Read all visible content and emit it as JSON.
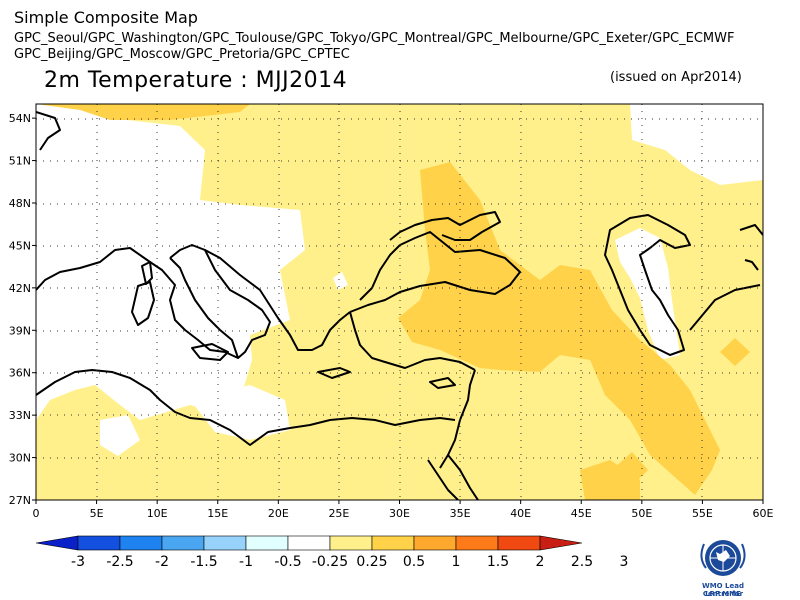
{
  "header": {
    "app_title": "Simple Composite Map",
    "centres_line1": "GPC_Seoul/GPC_Washington/GPC_Toulouse/GPC_Tokyo/GPC_Montreal/GPC_Melbourne/GPC_Exeter/GPC_ECMWF",
    "centres_line2": "GPC_Beijing/GPC_Moscow/GPC_Pretoria/GPC_CPTEC",
    "map_title": "2m Temperature : MJJ2014",
    "issued": "(issued on Apr2014)"
  },
  "map": {
    "lat_labels": [
      "54N",
      "51N",
      "48N",
      "45N",
      "42N",
      "39N",
      "36N",
      "33N",
      "30N",
      "27N"
    ],
    "lat_values": [
      54,
      51,
      48,
      45,
      42,
      39,
      36,
      33,
      30,
      27
    ],
    "lon_labels": [
      "0",
      "5E",
      "10E",
      "15E",
      "20E",
      "25E",
      "30E",
      "35E",
      "40E",
      "45E",
      "50E",
      "55E",
      "60E"
    ],
    "lon_values": [
      0,
      5,
      10,
      15,
      20,
      25,
      30,
      35,
      40,
      45,
      50,
      55,
      60
    ],
    "extent": {
      "lon_min": 0,
      "lon_max": 60,
      "lat_min": 27,
      "lat_max": 55
    }
  },
  "colorbar": {
    "labels": [
      "-3",
      "-2.5",
      "-2",
      "-1.5",
      "-1",
      "-0.5",
      "-0.25",
      "0.25",
      "0.5",
      "1",
      "1.5",
      "2",
      "2.5",
      "3"
    ],
    "colors": [
      "#0a20c8",
      "#1450e0",
      "#1e82f0",
      "#4aa6f0",
      "#96d2fa",
      "#e1ffff",
      "#ffffff",
      "#fff08c",
      "#ffd24a",
      "#ffa82e",
      "#ff7a18",
      "#f04a12",
      "#c81e14"
    ]
  },
  "logo": {
    "label_line1": "WMO Lead Centre for",
    "label_line2": "LRF MME"
  },
  "colors": {
    "anomaly_025_05": "#fff08c",
    "anomaly_05_1": "#ffd24a",
    "neutral": "#ffffff",
    "coastline": "#000000"
  }
}
